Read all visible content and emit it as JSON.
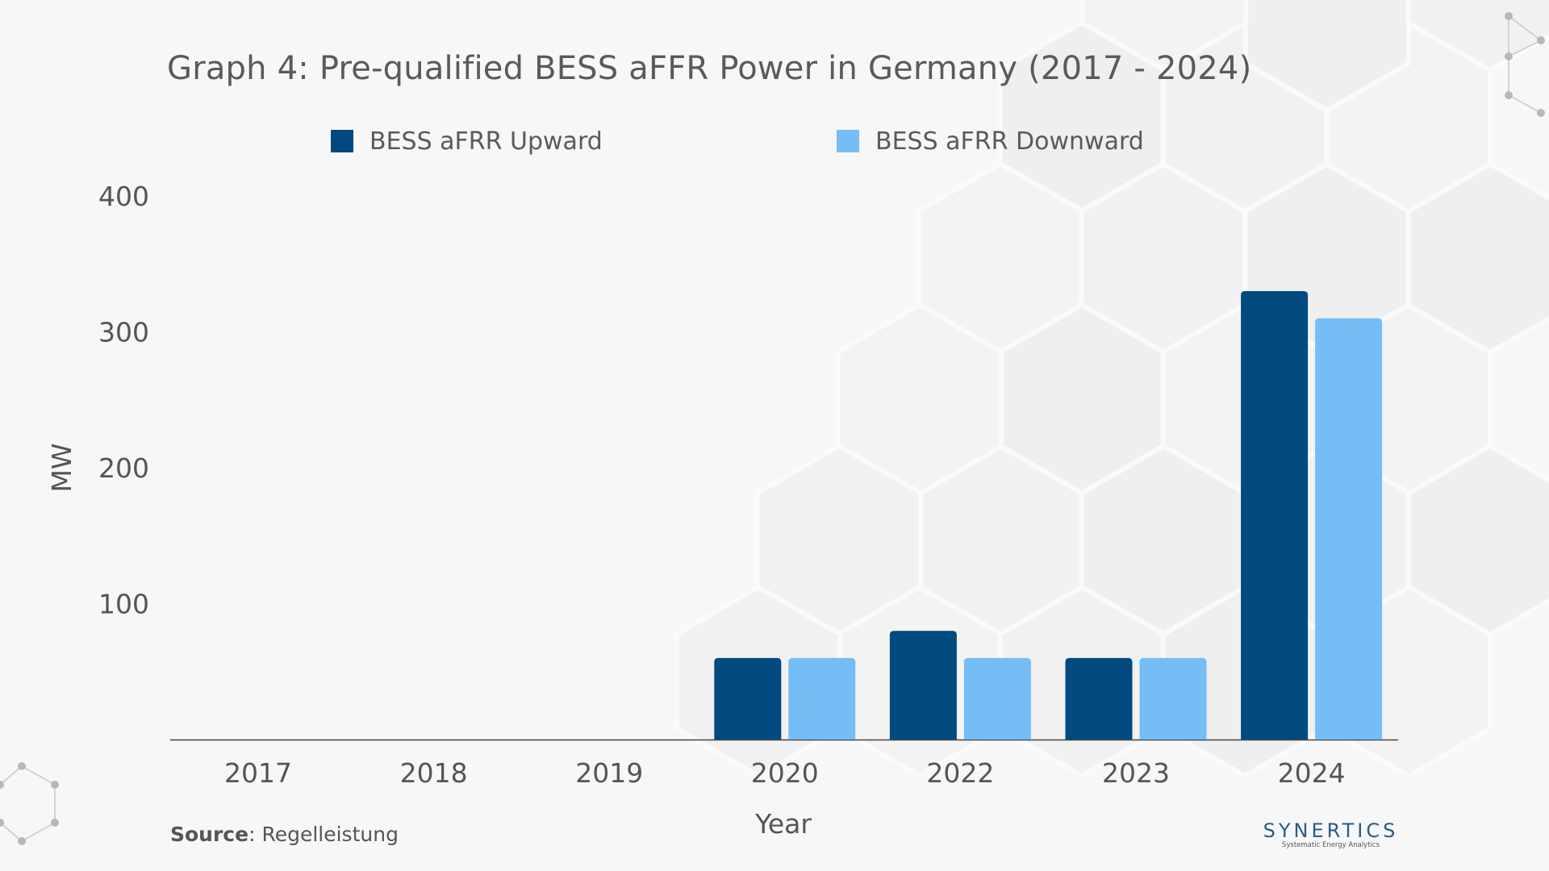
{
  "chart_data": {
    "type": "bar",
    "title": "Graph 4: Pre-qualified BESS aFFR Power in Germany (2017 - 2024)",
    "xlabel": "Year",
    "ylabel": "MW",
    "categories": [
      "2017",
      "2018",
      "2019",
      "2020",
      "2022",
      "2023",
      "2024"
    ],
    "series": [
      {
        "name": "BESS aFRR Upward",
        "color": "#004a7f",
        "values": [
          0,
          0,
          0,
          60,
          80,
          60,
          330
        ]
      },
      {
        "name": "BESS aFRR Downward",
        "color": "#75bdf7",
        "values": [
          0,
          0,
          0,
          60,
          60,
          60,
          310
        ]
      }
    ],
    "yticks": [
      "100",
      "200",
      "300",
      "400"
    ],
    "ylim": [
      0,
      400
    ],
    "grid": false,
    "legend_position": "top"
  },
  "footer": {
    "source_label": "Source",
    "source_text": ": Regelleistung"
  },
  "brand": {
    "name": "SYNERTICS",
    "tagline": "Systematic Energy Analytics"
  }
}
